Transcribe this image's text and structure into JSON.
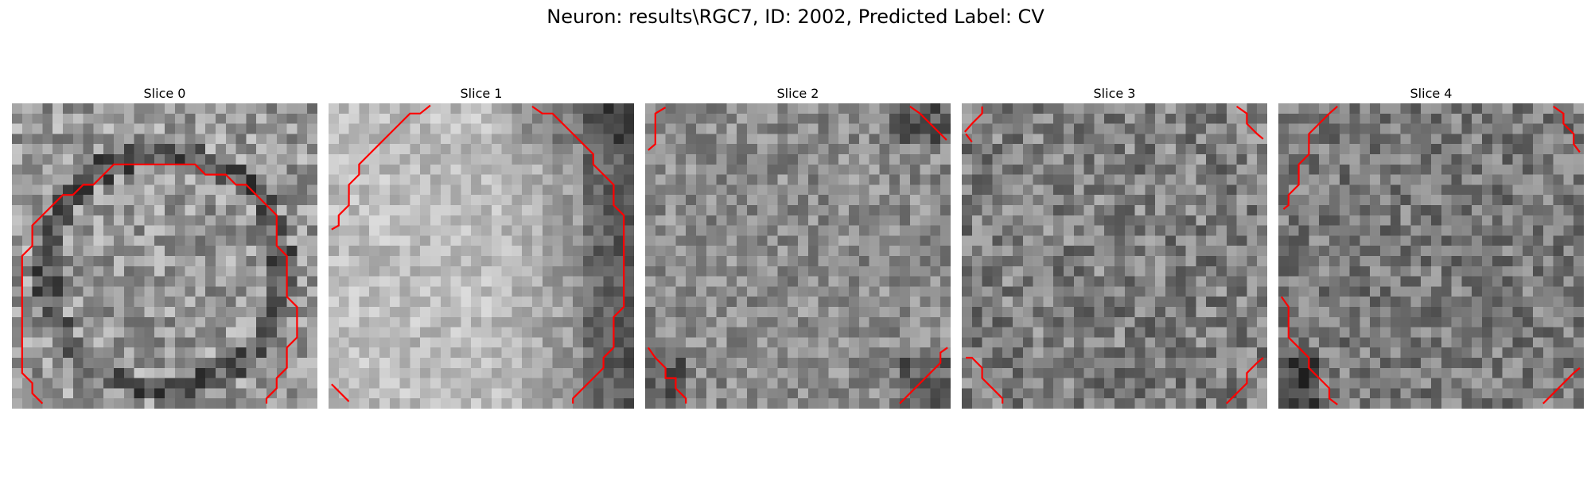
{
  "figure": {
    "title": "Neuron: results\\RGC7, ID: 2002, Predicted Label: CV"
  },
  "panels": [
    {
      "title": "Slice 0",
      "brightness": 0.56,
      "contrast": 0.2
    },
    {
      "title": "Slice 1",
      "brightness": 0.66,
      "contrast": 0.12
    },
    {
      "title": "Slice 2",
      "brightness": 0.55,
      "contrast": 0.16
    },
    {
      "title": "Slice 3",
      "brightness": 0.5,
      "contrast": 0.2
    },
    {
      "title": "Slice 4",
      "brightness": 0.5,
      "contrast": 0.18
    }
  ],
  "colors": {
    "contour": "#ff0000",
    "background": "#ffffff"
  },
  "image": {
    "colormap": "gray",
    "grid_size": 30
  }
}
